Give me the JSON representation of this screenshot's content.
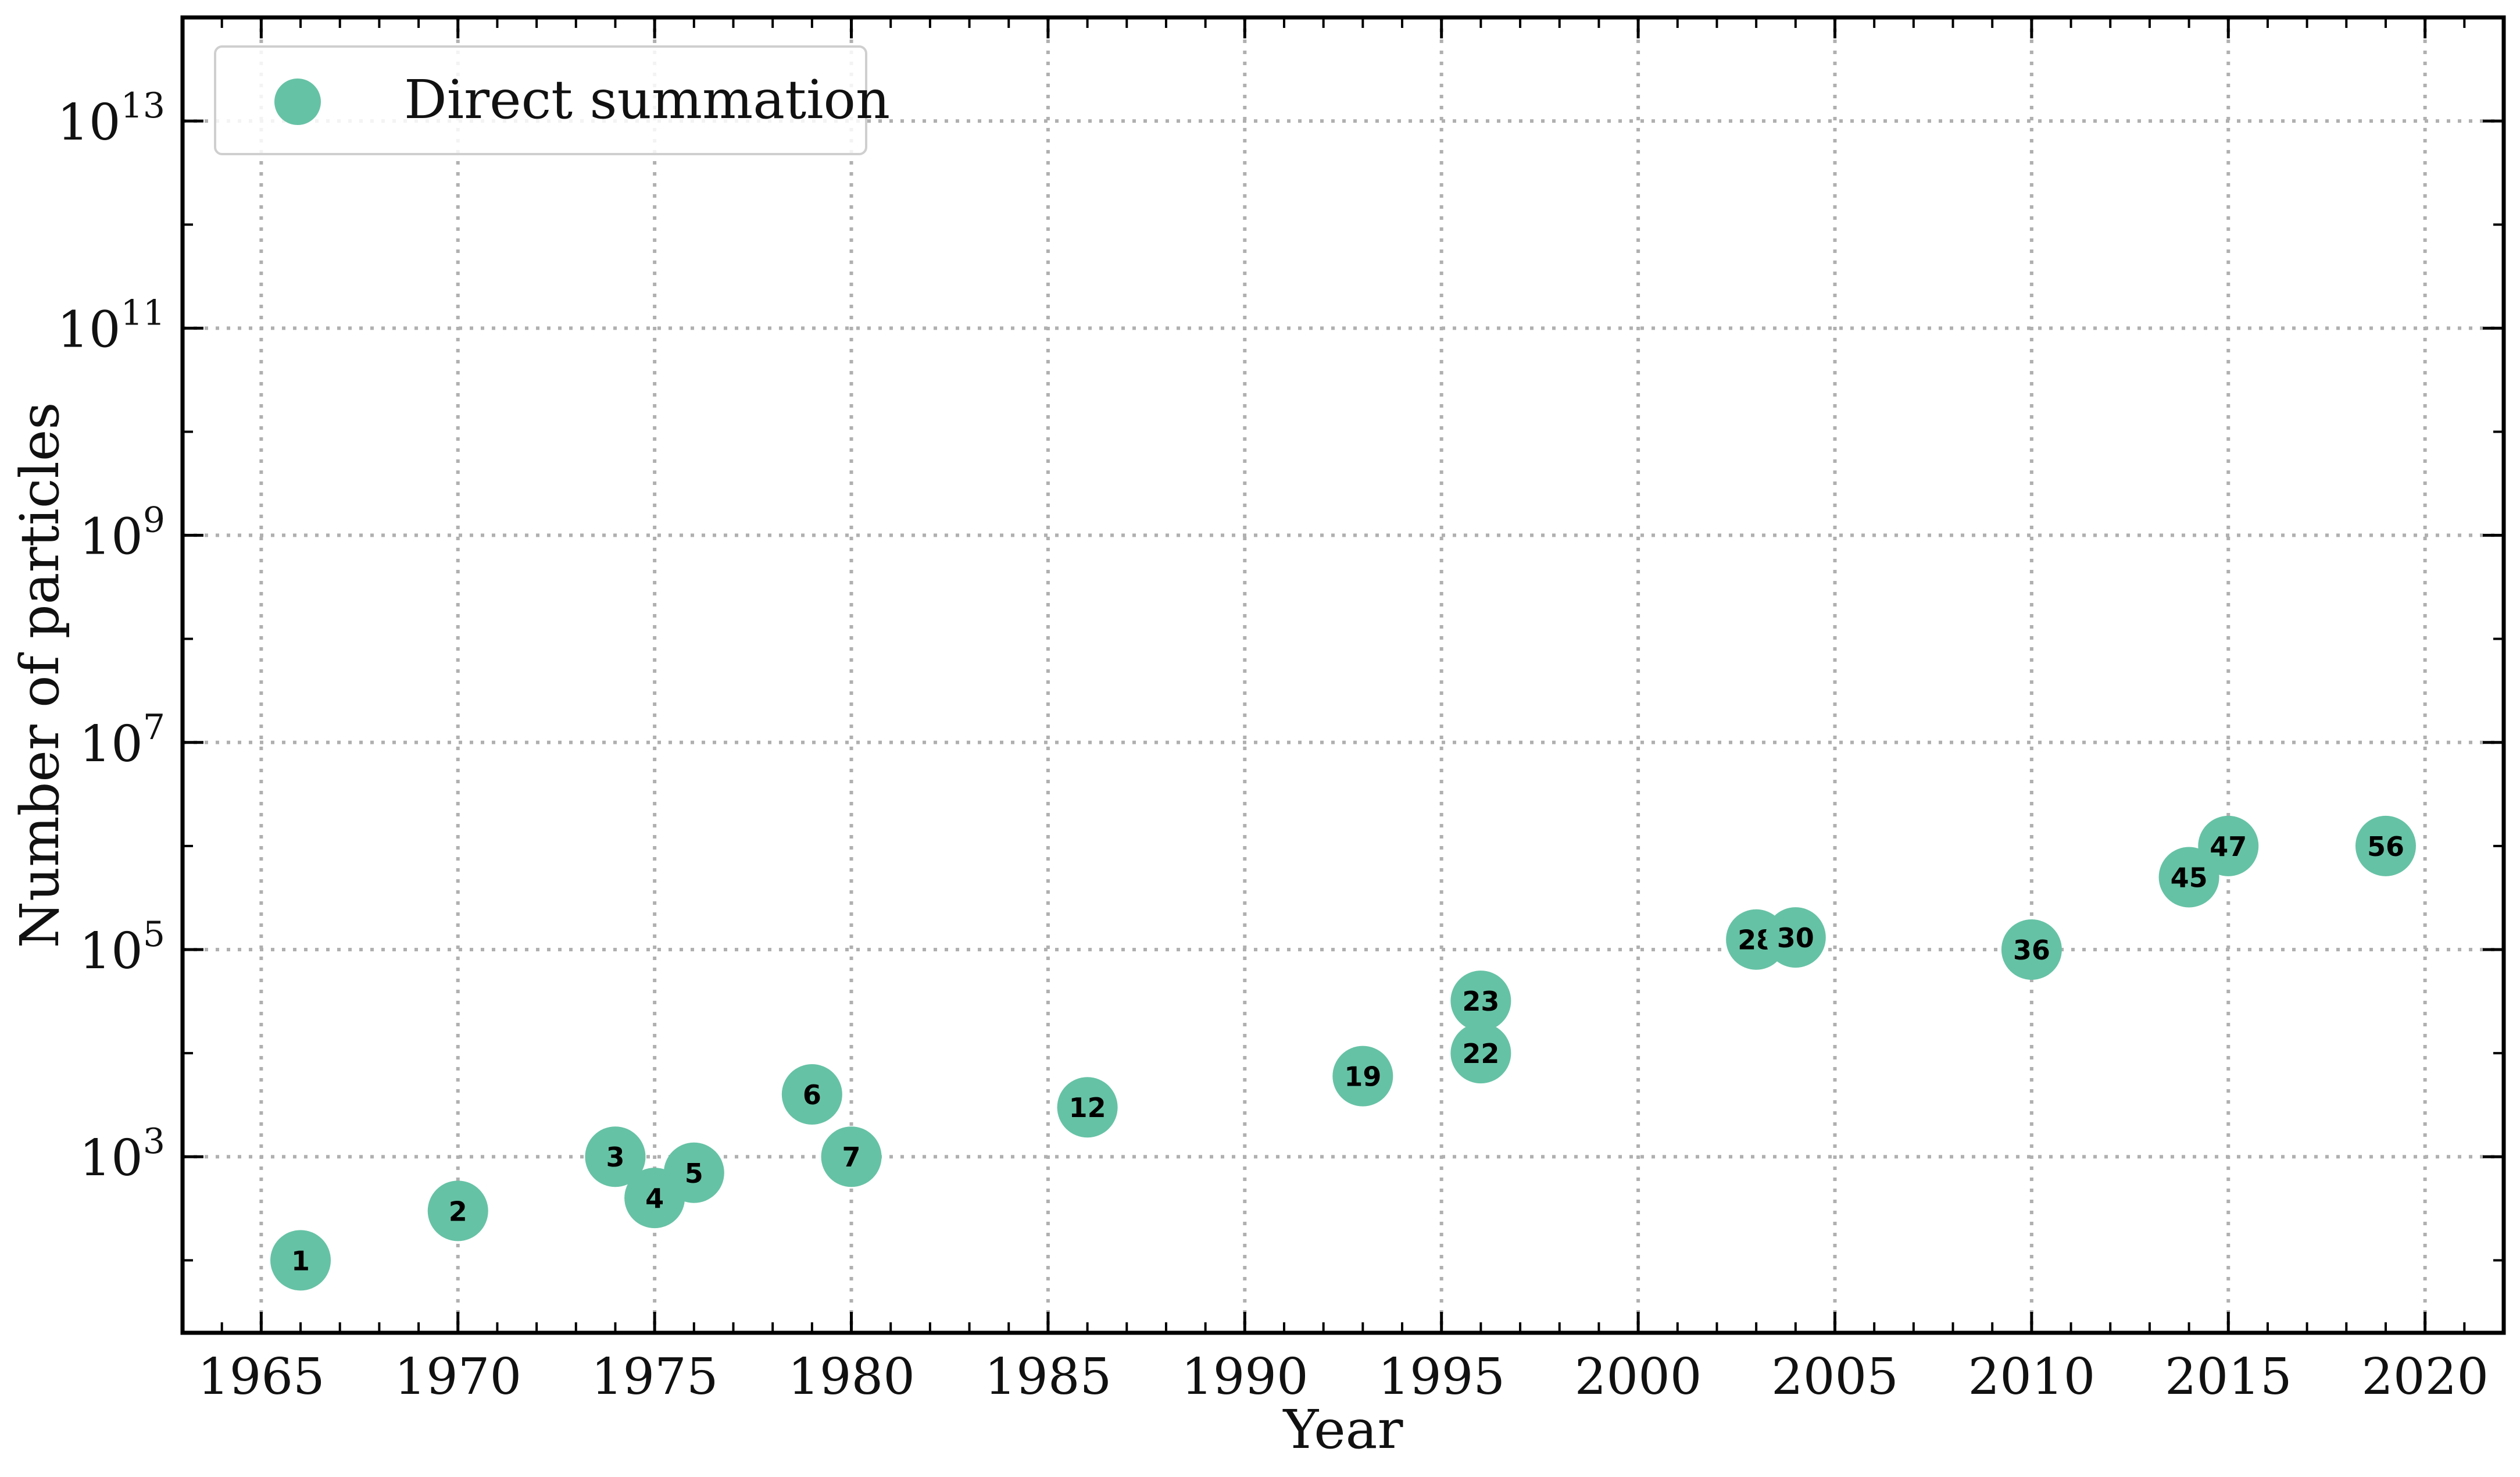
{
  "chart_data": {
    "type": "scatter",
    "xlabel": "Year",
    "ylabel": "Number of particles",
    "xlim": [
      1963,
      2022
    ],
    "ylim_log10": [
      1.3,
      14.0
    ],
    "y_scale": "log",
    "grid": true,
    "legend_position": "top-left",
    "x_ticks": [
      1965,
      1970,
      1975,
      1980,
      1985,
      1990,
      1995,
      2000,
      2005,
      2010,
      2015,
      2020
    ],
    "x_tick_labels": [
      "1965",
      "1970",
      "1975",
      "1980",
      "1985",
      "1990",
      "1995",
      "2000",
      "2005",
      "2010",
      "2015",
      "2020"
    ],
    "y_tick_exponents": [
      3,
      5,
      7,
      9,
      11,
      13
    ],
    "series": [
      {
        "name": "Direct summation",
        "color": "#66c2a5",
        "points": [
          {
            "label": "1",
            "x": 1966,
            "y": 100
          },
          {
            "label": "2",
            "x": 1970,
            "y": 300
          },
          {
            "label": "3",
            "x": 1974,
            "y": 1000
          },
          {
            "label": "4",
            "x": 1975,
            "y": 400
          },
          {
            "label": "5",
            "x": 1976,
            "y": 700
          },
          {
            "label": "6",
            "x": 1979,
            "y": 4000
          },
          {
            "label": "7",
            "x": 1980,
            "y": 1000
          },
          {
            "label": "12",
            "x": 1986,
            "y": 3000
          },
          {
            "label": "19",
            "x": 1993,
            "y": 6000
          },
          {
            "label": "22",
            "x": 1996,
            "y": 10000
          },
          {
            "label": "23",
            "x": 1996,
            "y": 32000
          },
          {
            "label": "28",
            "x": 2003,
            "y": 125000
          },
          {
            "label": "30",
            "x": 2004,
            "y": 131000
          },
          {
            "label": "36",
            "x": 2010,
            "y": 100000
          },
          {
            "label": "45",
            "x": 2014,
            "y": 500000
          },
          {
            "label": "47",
            "x": 2015,
            "y": 1000000
          },
          {
            "label": "56",
            "x": 2019,
            "y": 1000000
          }
        ]
      }
    ]
  }
}
